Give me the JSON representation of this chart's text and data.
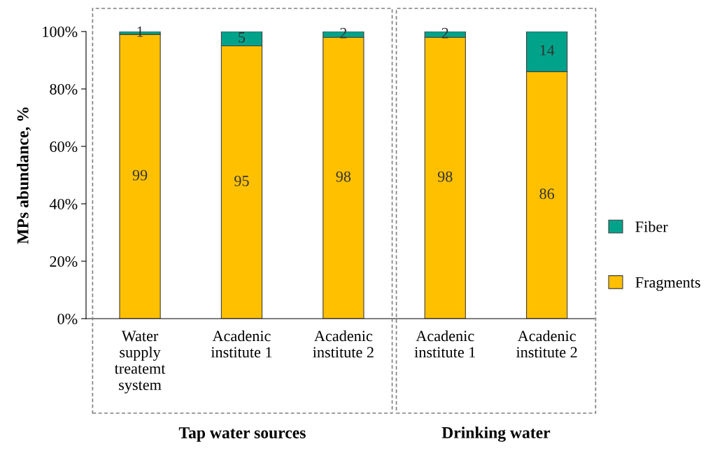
{
  "chart_data": {
    "type": "bar",
    "stacked": true,
    "categories": [
      "Water\nsupply\ntreatemt\nsystem",
      "Acadenic\ninstitute 1",
      "Acadenic\ninstitute 2",
      "Acadenic\ninstitute 1",
      "Acadenic\ninstitute 2"
    ],
    "series": [
      {
        "name": "Fragments",
        "color": "#ffc000",
        "values": [
          99,
          95,
          98,
          98,
          86
        ]
      },
      {
        "name": "Fiber",
        "color": "#00a38a",
        "values": [
          1,
          5,
          2,
          2,
          14
        ]
      }
    ],
    "ylabel": "MPs abundance, %",
    "ylim": [
      0,
      100
    ],
    "yticks": [
      {
        "value": 0,
        "label": "0%"
      },
      {
        "value": 20,
        "label": "20%"
      },
      {
        "value": 40,
        "label": "40%"
      },
      {
        "value": 60,
        "label": "60%"
      },
      {
        "value": 80,
        "label": "80%"
      },
      {
        "value": 100,
        "label": "100%"
      }
    ],
    "data_labels": true,
    "legend": "right",
    "annotations": [
      "Tap water sources",
      "Drinking water"
    ]
  }
}
